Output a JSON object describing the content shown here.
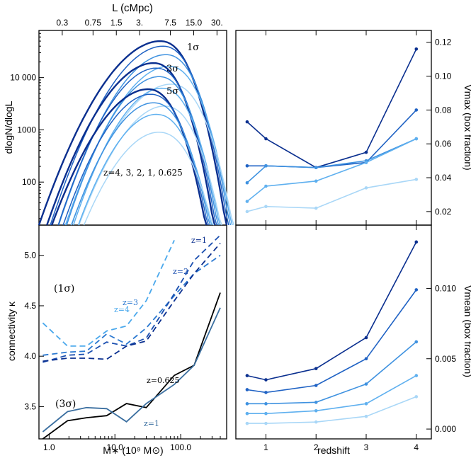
{
  "figure": {
    "top_axis_label": "L (cMpc)",
    "top_ticks": [
      "0.3",
      "0.75",
      "1.5",
      "3.",
      "7.5",
      "15.0",
      "30."
    ],
    "x_label_left": "M∗ (10⁹ M⊙)",
    "x_label_right": "redshift",
    "x_ticks_left": [
      "1.0",
      "10.0",
      "100.0"
    ],
    "x_ticks_right": [
      "1",
      "2",
      "3",
      "4"
    ]
  },
  "chart_data": [
    {
      "id": "top-left",
      "type": "line",
      "ylabel": "dlogN/dlogL",
      "yscale": "log",
      "ylim": [
        15,
        80000
      ],
      "xlim_cMpc": [
        0.15,
        40
      ],
      "y_ticks": [
        {
          "value": 100,
          "label": "100"
        },
        {
          "value": 1000,
          "label": "1000"
        },
        {
          "value": 10000,
          "label": "10 000"
        }
      ],
      "annotations": {
        "sigma1": "1σ",
        "sigma3": "3σ",
        "sigma5": "5σ",
        "redshifts": "z=4, 3, 2, 1, 0.625"
      },
      "thresholds": [
        {
          "name": "1σ",
          "peak_L": 5.5,
          "peak": 50000,
          "left_L": 0.15,
          "right_L": 40
        },
        {
          "name": "3σ",
          "peak_L": 4.5,
          "peak": 19000,
          "left_L": 0.19,
          "right_L": 28
        },
        {
          "name": "5σ",
          "peak_L": 3.8,
          "peak": 6000,
          "left_L": 0.22,
          "right_L": 22
        }
      ],
      "redshifts": [
        "0.625",
        "1",
        "2",
        "3",
        "4"
      ],
      "redshift_peak_shift": [
        1.0,
        1.08,
        1.18,
        1.28,
        1.38
      ],
      "redshift_peak_scale": [
        1.0,
        0.8,
        0.55,
        0.33,
        0.15
      ]
    },
    {
      "id": "top-right",
      "type": "line",
      "xlabel": "redshift",
      "ylabel": "Vmax (box fraction)",
      "ylim": [
        0.012,
        0.127
      ],
      "xlim": [
        0.4,
        4.3
      ],
      "y_ticks": [
        "0.02",
        "0.04",
        "0.06",
        "0.08",
        "0.10",
        "0.12"
      ],
      "x": [
        0.625,
        1,
        2,
        3,
        4
      ],
      "series": [
        {
          "name": "z-series-1",
          "color": "#0a2f8f",
          "values": [
            0.073,
            0.063,
            0.046,
            0.055,
            0.116
          ]
        },
        {
          "name": "z-series-2",
          "color": "#1f62c4",
          "values": [
            0.047,
            0.047,
            0.046,
            0.049,
            0.08
          ]
        },
        {
          "name": "z-series-3",
          "color": "#3f92e0",
          "values": [
            0.037,
            0.047,
            0.046,
            0.05,
            0.063
          ]
        },
        {
          "name": "z-series-4",
          "color": "#5fb0ef",
          "values": [
            0.026,
            0.035,
            0.038,
            0.049,
            0.063
          ]
        },
        {
          "name": "z-series-5",
          "color": "#a9d7f7",
          "values": [
            0.02,
            0.023,
            0.022,
            0.034,
            0.039
          ]
        }
      ]
    },
    {
      "id": "bottom-left",
      "type": "line",
      "xlabel": "M∗ (10⁹ M⊙)",
      "ylabel": "connectivity κ",
      "xscale": "log",
      "xlim": [
        0.7,
        500
      ],
      "ylim": [
        3.18,
        5.3
      ],
      "y_ticks": [
        "3.5",
        "4.0",
        "4.5",
        "5.0"
      ],
      "x_ticks": [
        "1.0",
        "10.0",
        "100.0"
      ],
      "annotations": {
        "sigma1": "(1σ)",
        "sigma3": "(3σ)",
        "z4": "z=4",
        "z3": "z=3",
        "z2": "z=2",
        "z1_top": "z=1",
        "z0625": "z=0.625",
        "z1_bottom": "z=1"
      },
      "series": [
        {
          "name": "1σ z=4",
          "color": "#4aa8ec",
          "dashed": true,
          "x": [
            0.8,
            1.9,
            3.7,
            7.5,
            15,
            30,
            80
          ],
          "values": [
            4.33,
            4.1,
            4.1,
            4.25,
            4.3,
            4.55,
            5.15
          ]
        },
        {
          "name": "1σ z=3",
          "color": "#2a78d0",
          "dashed": true,
          "x": [
            0.8,
            1.9,
            3.7,
            7.5,
            15,
            30,
            80,
            160,
            400
          ],
          "values": [
            4.01,
            4.04,
            4.05,
            4.22,
            4.12,
            4.28,
            4.6,
            4.82,
            5.0
          ]
        },
        {
          "name": "1σ z=2",
          "color": "#1b4fb0",
          "dashed": true,
          "x": [
            0.8,
            1.9,
            3.7,
            7.5,
            15,
            30,
            80,
            160,
            400
          ],
          "values": [
            3.94,
            4.01,
            4.02,
            4.14,
            4.1,
            4.18,
            4.62,
            4.95,
            5.2
          ]
        },
        {
          "name": "1σ z=1",
          "color": "#0a2f8f",
          "dashed": true,
          "x": [
            0.8,
            1.9,
            3.7,
            7.5,
            15,
            30,
            80,
            160,
            400
          ],
          "values": [
            3.95,
            3.98,
            3.98,
            3.97,
            4.1,
            4.15,
            4.55,
            4.82,
            5.12
          ]
        },
        {
          "name": "3σ z=0.625",
          "color": "#000000",
          "dashed": false,
          "x": [
            0.8,
            1.9,
            3.7,
            7.5,
            15,
            30,
            80,
            160,
            400
          ],
          "values": [
            3.18,
            3.36,
            3.39,
            3.41,
            3.53,
            3.49,
            3.81,
            3.91,
            4.63
          ]
        },
        {
          "name": "3σ z=1",
          "color": "#3b6fa0",
          "dashed": false,
          "x": [
            0.8,
            1.9,
            3.7,
            7.5,
            15,
            30,
            80,
            160,
            400
          ],
          "values": [
            3.25,
            3.45,
            3.49,
            3.48,
            3.35,
            3.53,
            3.72,
            3.91,
            4.48
          ]
        }
      ]
    },
    {
      "id": "bottom-right",
      "type": "line",
      "xlabel": "redshift",
      "ylabel": "Vmean (box fraction)",
      "ylim": [
        -0.0007,
        0.0145
      ],
      "xlim": [
        0.4,
        4.3
      ],
      "y_ticks": [
        "0.000",
        "0.005",
        "0.010"
      ],
      "x_ticks": [
        "1",
        "2",
        "3",
        "4"
      ],
      "x": [
        0.625,
        1,
        2,
        3,
        4
      ],
      "series": [
        {
          "name": "z-series-1",
          "color": "#0a2f8f",
          "values": [
            0.0038,
            0.0035,
            0.0043,
            0.0065,
            0.0133
          ]
        },
        {
          "name": "z-series-2",
          "color": "#1f62c4",
          "values": [
            0.0028,
            0.0026,
            0.0031,
            0.005,
            0.0099
          ]
        },
        {
          "name": "z-series-3",
          "color": "#3f92e0",
          "values": [
            0.0018,
            0.0018,
            0.0019,
            0.0032,
            0.0062
          ]
        },
        {
          "name": "z-series-4",
          "color": "#5fb0ef",
          "values": [
            0.0011,
            0.0011,
            0.0013,
            0.0018,
            0.0038
          ]
        },
        {
          "name": "z-series-5",
          "color": "#a9d7f7",
          "values": [
            0.0004,
            0.0004,
            0.0005,
            0.0009,
            0.0023
          ]
        }
      ]
    }
  ]
}
